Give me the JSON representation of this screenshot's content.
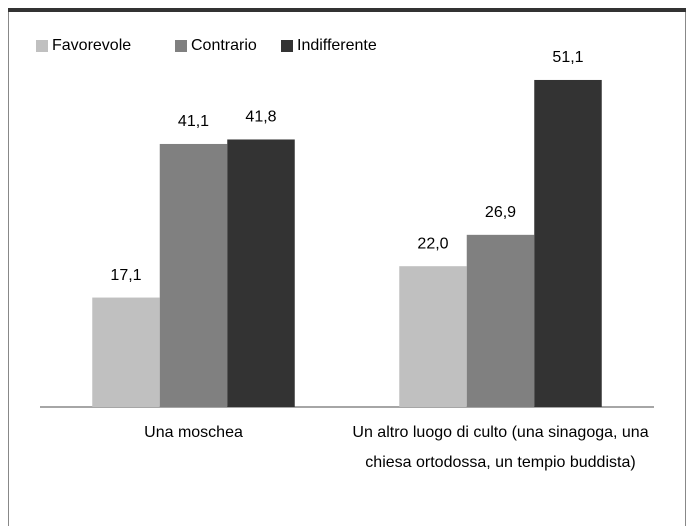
{
  "chart_data": {
    "type": "bar",
    "categories": [
      "Una moschea",
      "Un altro luogo di culto (una sinagoga, una chiesa ortodossa, un tempio buddista)"
    ],
    "series": [
      {
        "name": "Favorevole",
        "color": "#c0c0c0",
        "values": [
          17.1,
          22.0
        ],
        "value_labels": [
          "17,1",
          "22,0"
        ]
      },
      {
        "name": "Contrario",
        "color": "#808080",
        "values": [
          41.1,
          26.9
        ],
        "value_labels": [
          "41,1",
          "26,9"
        ]
      },
      {
        "name": "Indifferente",
        "color": "#333333",
        "values": [
          41.8,
          51.1
        ],
        "value_labels": [
          "41,8",
          "51,1"
        ]
      }
    ],
    "ylim": [
      0,
      60
    ],
    "legend": "top-left"
  }
}
